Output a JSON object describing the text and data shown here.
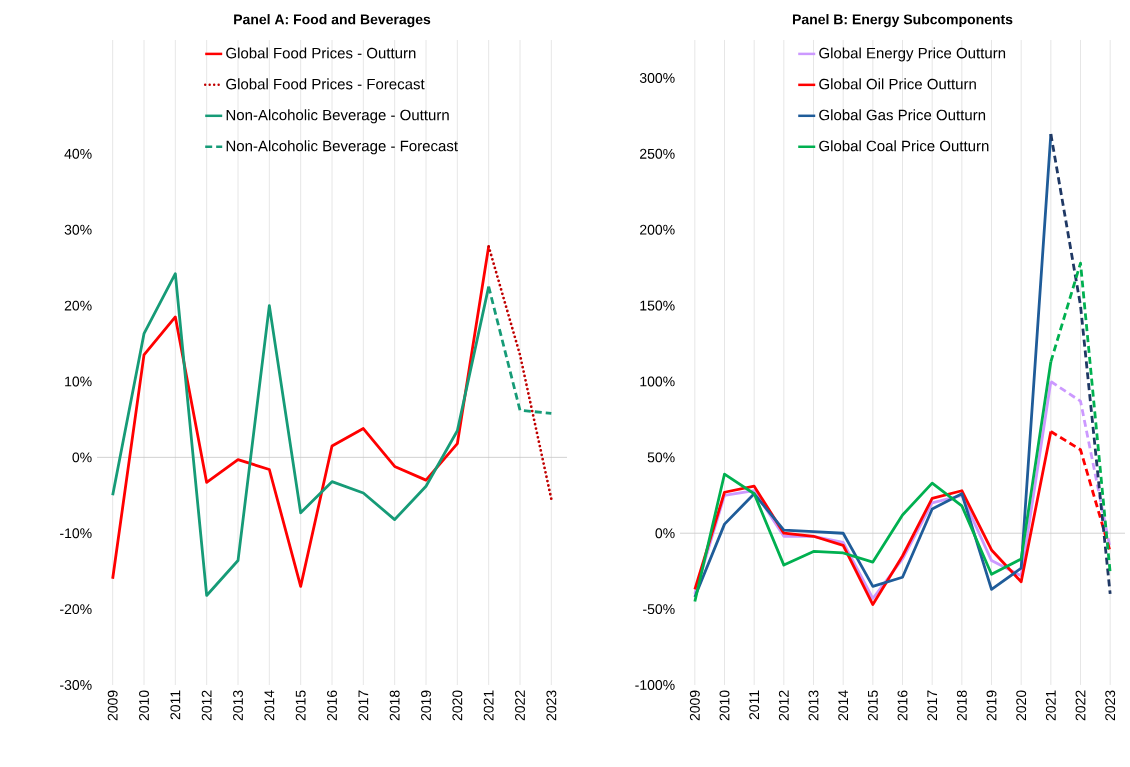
{
  "chart_data": [
    {
      "type": "line",
      "title": "Panel A: Food and Beverages",
      "categories": [
        "2009",
        "2010",
        "2011",
        "2012",
        "2013",
        "2014",
        "2015",
        "2016",
        "2017",
        "2018",
        "2019",
        "2020",
        "2021",
        "2022",
        "2023"
      ],
      "series": [
        {
          "name": "Global Food Prices - Outturn",
          "color": "#ff0000",
          "line_style": "solid",
          "values": [
            -16,
            13.5,
            18.5,
            -3.3,
            -0.3,
            -1.6,
            -17,
            1.5,
            3.8,
            -1.2,
            -3,
            1.8,
            27.8,
            null,
            null
          ]
        },
        {
          "name": "Global Food Prices - Forecast",
          "color": "#c00000",
          "line_style": "dotted",
          "values": [
            null,
            null,
            null,
            null,
            null,
            null,
            null,
            null,
            null,
            null,
            null,
            null,
            27.8,
            13.5,
            -5.5
          ]
        },
        {
          "name": "Non-Alcoholic Beverage - Outturn",
          "color": "#169b77",
          "line_style": "solid",
          "values": [
            -5,
            16.3,
            24.2,
            -18.2,
            -13.6,
            20,
            -7.3,
            -3.2,
            -4.7,
            -8.2,
            -3.8,
            3.5,
            22.5,
            null,
            null
          ]
        },
        {
          "name": "Non-Alcoholic Beverage - Forecast",
          "color": "#169b77",
          "line_style": "dashed",
          "values": [
            null,
            null,
            null,
            null,
            null,
            null,
            null,
            null,
            null,
            null,
            null,
            null,
            22.5,
            6.2,
            5.8
          ]
        }
      ],
      "ylim": [
        -30,
        55
      ],
      "yticks": [
        {
          "value": -30,
          "label": "-30%"
        },
        {
          "value": -20,
          "label": "-20%"
        },
        {
          "value": -10,
          "label": "-10%"
        },
        {
          "value": 0,
          "label": "0%"
        },
        {
          "value": 10,
          "label": "10%"
        },
        {
          "value": 20,
          "label": "20%"
        },
        {
          "value": 30,
          "label": "30%"
        },
        {
          "value": 40,
          "label": "40%"
        }
      ],
      "grid": "x",
      "legend": "top",
      "marker": "none"
    },
    {
      "type": "line",
      "title": "Panel B: Energy Subcomponents",
      "categories": [
        "2009",
        "2010",
        "2011",
        "2012",
        "2013",
        "2014",
        "2015",
        "2016",
        "2017",
        "2018",
        "2019",
        "2020",
        "2021",
        "2022",
        "2023"
      ],
      "series": [
        {
          "name": "Global Energy Price Outturn",
          "color": "#cc99ff",
          "line_style": "solid",
          "values": [
            -40,
            25,
            28,
            -2,
            -2,
            -6,
            -43,
            -17,
            20,
            25,
            -18,
            -28,
            100,
            null,
            null
          ]
        },
        {
          "name": "Global Oil Price Outturn",
          "color": "#ff0000",
          "line_style": "solid",
          "values": [
            -37,
            27,
            31,
            0,
            -2,
            -8,
            -47,
            -15,
            23,
            28,
            -11,
            -32,
            67,
            null,
            null
          ]
        },
        {
          "name": "Global Gas Price Outturn",
          "color": "#1f5c99",
          "line_style": "solid",
          "values": [
            -42,
            6,
            26,
            2,
            1,
            0,
            -35,
            -29,
            16,
            26,
            -37,
            -23,
            263,
            null,
            null
          ]
        },
        {
          "name": "Global Coal Price Outturn",
          "color": "#00b050",
          "line_style": "solid",
          "values": [
            -45,
            39,
            26,
            -21,
            -12,
            -13,
            -19,
            12,
            33,
            18,
            -27,
            -17,
            113,
            null,
            null
          ]
        },
        {
          "color": "#cc99ff",
          "line_style": "dashed",
          "values": [
            null,
            null,
            null,
            null,
            null,
            null,
            null,
            null,
            null,
            null,
            null,
            null,
            100,
            87,
            -10
          ]
        },
        {
          "color": "#ff0000",
          "line_style": "dashed",
          "values": [
            null,
            null,
            null,
            null,
            null,
            null,
            null,
            null,
            null,
            null,
            null,
            null,
            67,
            55,
            -12
          ]
        },
        {
          "color": "#1f3864",
          "line_style": "dashed",
          "values": [
            null,
            null,
            null,
            null,
            null,
            null,
            null,
            null,
            null,
            null,
            null,
            null,
            263,
            150,
            -40
          ]
        },
        {
          "color": "#00b050",
          "line_style": "dashed",
          "values": [
            null,
            null,
            null,
            null,
            null,
            null,
            null,
            null,
            null,
            null,
            null,
            null,
            113,
            178,
            -26
          ]
        }
      ],
      "ylim": [
        -100,
        325
      ],
      "yticks": [
        {
          "value": -100,
          "label": "-100%"
        },
        {
          "value": -50,
          "label": "-50%"
        },
        {
          "value": 0,
          "label": "0%"
        },
        {
          "value": 50,
          "label": "50%"
        },
        {
          "value": 100,
          "label": "100%"
        },
        {
          "value": 150,
          "label": "150%"
        },
        {
          "value": 200,
          "label": "200%"
        },
        {
          "value": 250,
          "label": "250%"
        },
        {
          "value": 300,
          "label": "300%"
        }
      ],
      "grid": "x",
      "legend": "top",
      "marker": "none"
    }
  ]
}
